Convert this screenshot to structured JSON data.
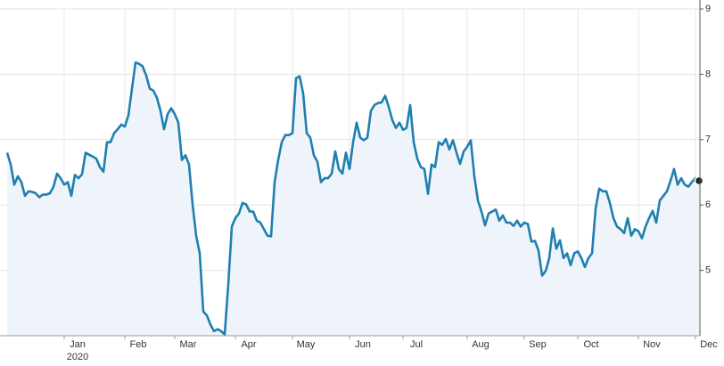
{
  "chart_data": {
    "type": "line",
    "categories": [
      null,
      null,
      null,
      null,
      null,
      null,
      null,
      null,
      null,
      null,
      null,
      null,
      null,
      null,
      null,
      null,
      "Jan",
      null,
      null,
      null,
      null,
      null,
      null,
      null,
      null,
      null,
      null,
      null,
      null,
      null,
      null,
      null,
      null,
      "Feb",
      null,
      null,
      null,
      null,
      null,
      null,
      null,
      null,
      null,
      null,
      null,
      null,
      null,
      "Mar",
      null,
      null,
      null,
      null,
      null,
      null,
      null,
      null,
      null,
      null,
      null,
      null,
      null,
      null,
      null,
      null,
      "Apr",
      null,
      null,
      null,
      null,
      null,
      null,
      null,
      null,
      null,
      null,
      null,
      null,
      null,
      null,
      null,
      "May",
      null,
      null,
      null,
      null,
      null,
      null,
      null,
      null,
      null,
      null,
      null,
      null,
      null,
      null,
      null,
      "Jun",
      null,
      null,
      null,
      null,
      null,
      null,
      null,
      null,
      null,
      null,
      null,
      null,
      null,
      null,
      "Jul",
      null,
      null,
      null,
      null,
      null,
      null,
      null,
      null,
      null,
      null,
      null,
      null,
      null,
      null,
      null,
      null,
      null,
      "Aug",
      null,
      null,
      null,
      null,
      null,
      null,
      null,
      null,
      null,
      null,
      null,
      null,
      null,
      null,
      null,
      "Sep",
      null,
      null,
      null,
      null,
      null,
      null,
      null,
      null,
      null,
      null,
      null,
      null,
      null,
      null,
      "Oct",
      null,
      null,
      null,
      null,
      null,
      null,
      null,
      null,
      null,
      null,
      null,
      null,
      null,
      null,
      null,
      null,
      "Nov",
      null,
      null,
      null,
      null,
      null,
      null,
      null,
      null,
      null,
      null,
      null,
      null,
      null,
      null,
      null,
      "Dec",
      null
    ],
    "year_label": "2020",
    "values": [
      6.8,
      6.62,
      6.31,
      6.44,
      6.35,
      6.14,
      6.21,
      6.2,
      6.18,
      6.12,
      6.16,
      6.16,
      6.18,
      6.28,
      6.48,
      6.41,
      6.31,
      6.35,
      6.14,
      6.46,
      6.41,
      6.47,
      6.8,
      6.77,
      6.74,
      6.71,
      6.58,
      6.51,
      6.96,
      6.96,
      7.1,
      7.16,
      7.23,
      7.2,
      7.37,
      7.78,
      8.18,
      8.16,
      8.12,
      7.98,
      7.78,
      7.75,
      7.64,
      7.44,
      7.16,
      7.39,
      7.48,
      7.39,
      7.26,
      6.69,
      6.76,
      6.62,
      6.01,
      5.53,
      5.26,
      4.37,
      4.31,
      4.17,
      4.07,
      4.1,
      4.07,
      4.02,
      4.78,
      5.67,
      5.8,
      5.87,
      6.03,
      6.01,
      5.9,
      5.9,
      5.76,
      5.73,
      5.63,
      5.53,
      5.52,
      6.35,
      6.69,
      6.96,
      7.07,
      7.07,
      7.1,
      7.94,
      7.97,
      7.71,
      7.1,
      7.03,
      6.76,
      6.66,
      6.35,
      6.41,
      6.41,
      6.48,
      6.82,
      6.55,
      6.48,
      6.8,
      6.55,
      6.96,
      7.26,
      7.03,
      6.99,
      7.03,
      7.44,
      7.53,
      7.56,
      7.57,
      7.67,
      7.5,
      7.3,
      7.18,
      7.26,
      7.15,
      7.18,
      7.53,
      6.96,
      6.71,
      6.58,
      6.55,
      6.17,
      6.62,
      6.58,
      6.96,
      6.92,
      7.01,
      6.85,
      6.99,
      6.8,
      6.63,
      6.82,
      6.89,
      6.99,
      6.44,
      6.07,
      5.9,
      5.69,
      5.87,
      5.9,
      5.93,
      5.76,
      5.84,
      5.73,
      5.73,
      5.68,
      5.76,
      5.67,
      5.73,
      5.71,
      5.44,
      5.45,
      5.3,
      4.92,
      4.99,
      5.19,
      5.64,
      5.33,
      5.46,
      5.19,
      5.26,
      5.08,
      5.26,
      5.29,
      5.19,
      5.05,
      5.19,
      5.26,
      5.94,
      6.25,
      6.21,
      6.21,
      6.03,
      5.8,
      5.67,
      5.63,
      5.57,
      5.8,
      5.53,
      5.63,
      5.6,
      5.49,
      5.67,
      5.8,
      5.91,
      5.73,
      6.07,
      6.14,
      6.21,
      6.37,
      6.55,
      6.31,
      6.41,
      6.31,
      6.28,
      6.35,
      6.41,
      6.37
    ],
    "color": "#1f7fb0",
    "fill_color": "#eef4fa",
    "ylim": [
      4,
      9
    ],
    "yticks": [
      5,
      6,
      7,
      8,
      9
    ],
    "grid": true
  }
}
